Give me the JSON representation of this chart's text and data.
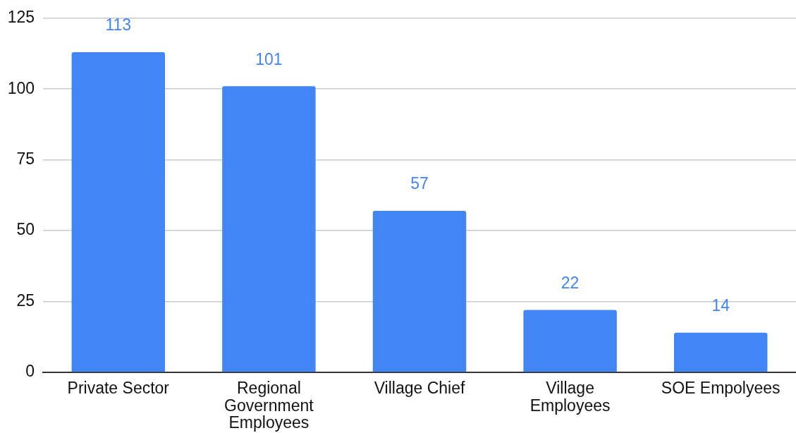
{
  "chart_data": {
    "type": "bar",
    "categories": [
      "Private Sector",
      "Regional Government Employees",
      "Village Chief",
      "Village Employees",
      "SOE Empolyees"
    ],
    "values": [
      113,
      101,
      57,
      22,
      14
    ],
    "color": "#4285f4",
    "ylim": [
      0,
      125
    ],
    "yticks": [
      0,
      25,
      50,
      75,
      100,
      125
    ],
    "grid": "y",
    "data_labels": true
  }
}
